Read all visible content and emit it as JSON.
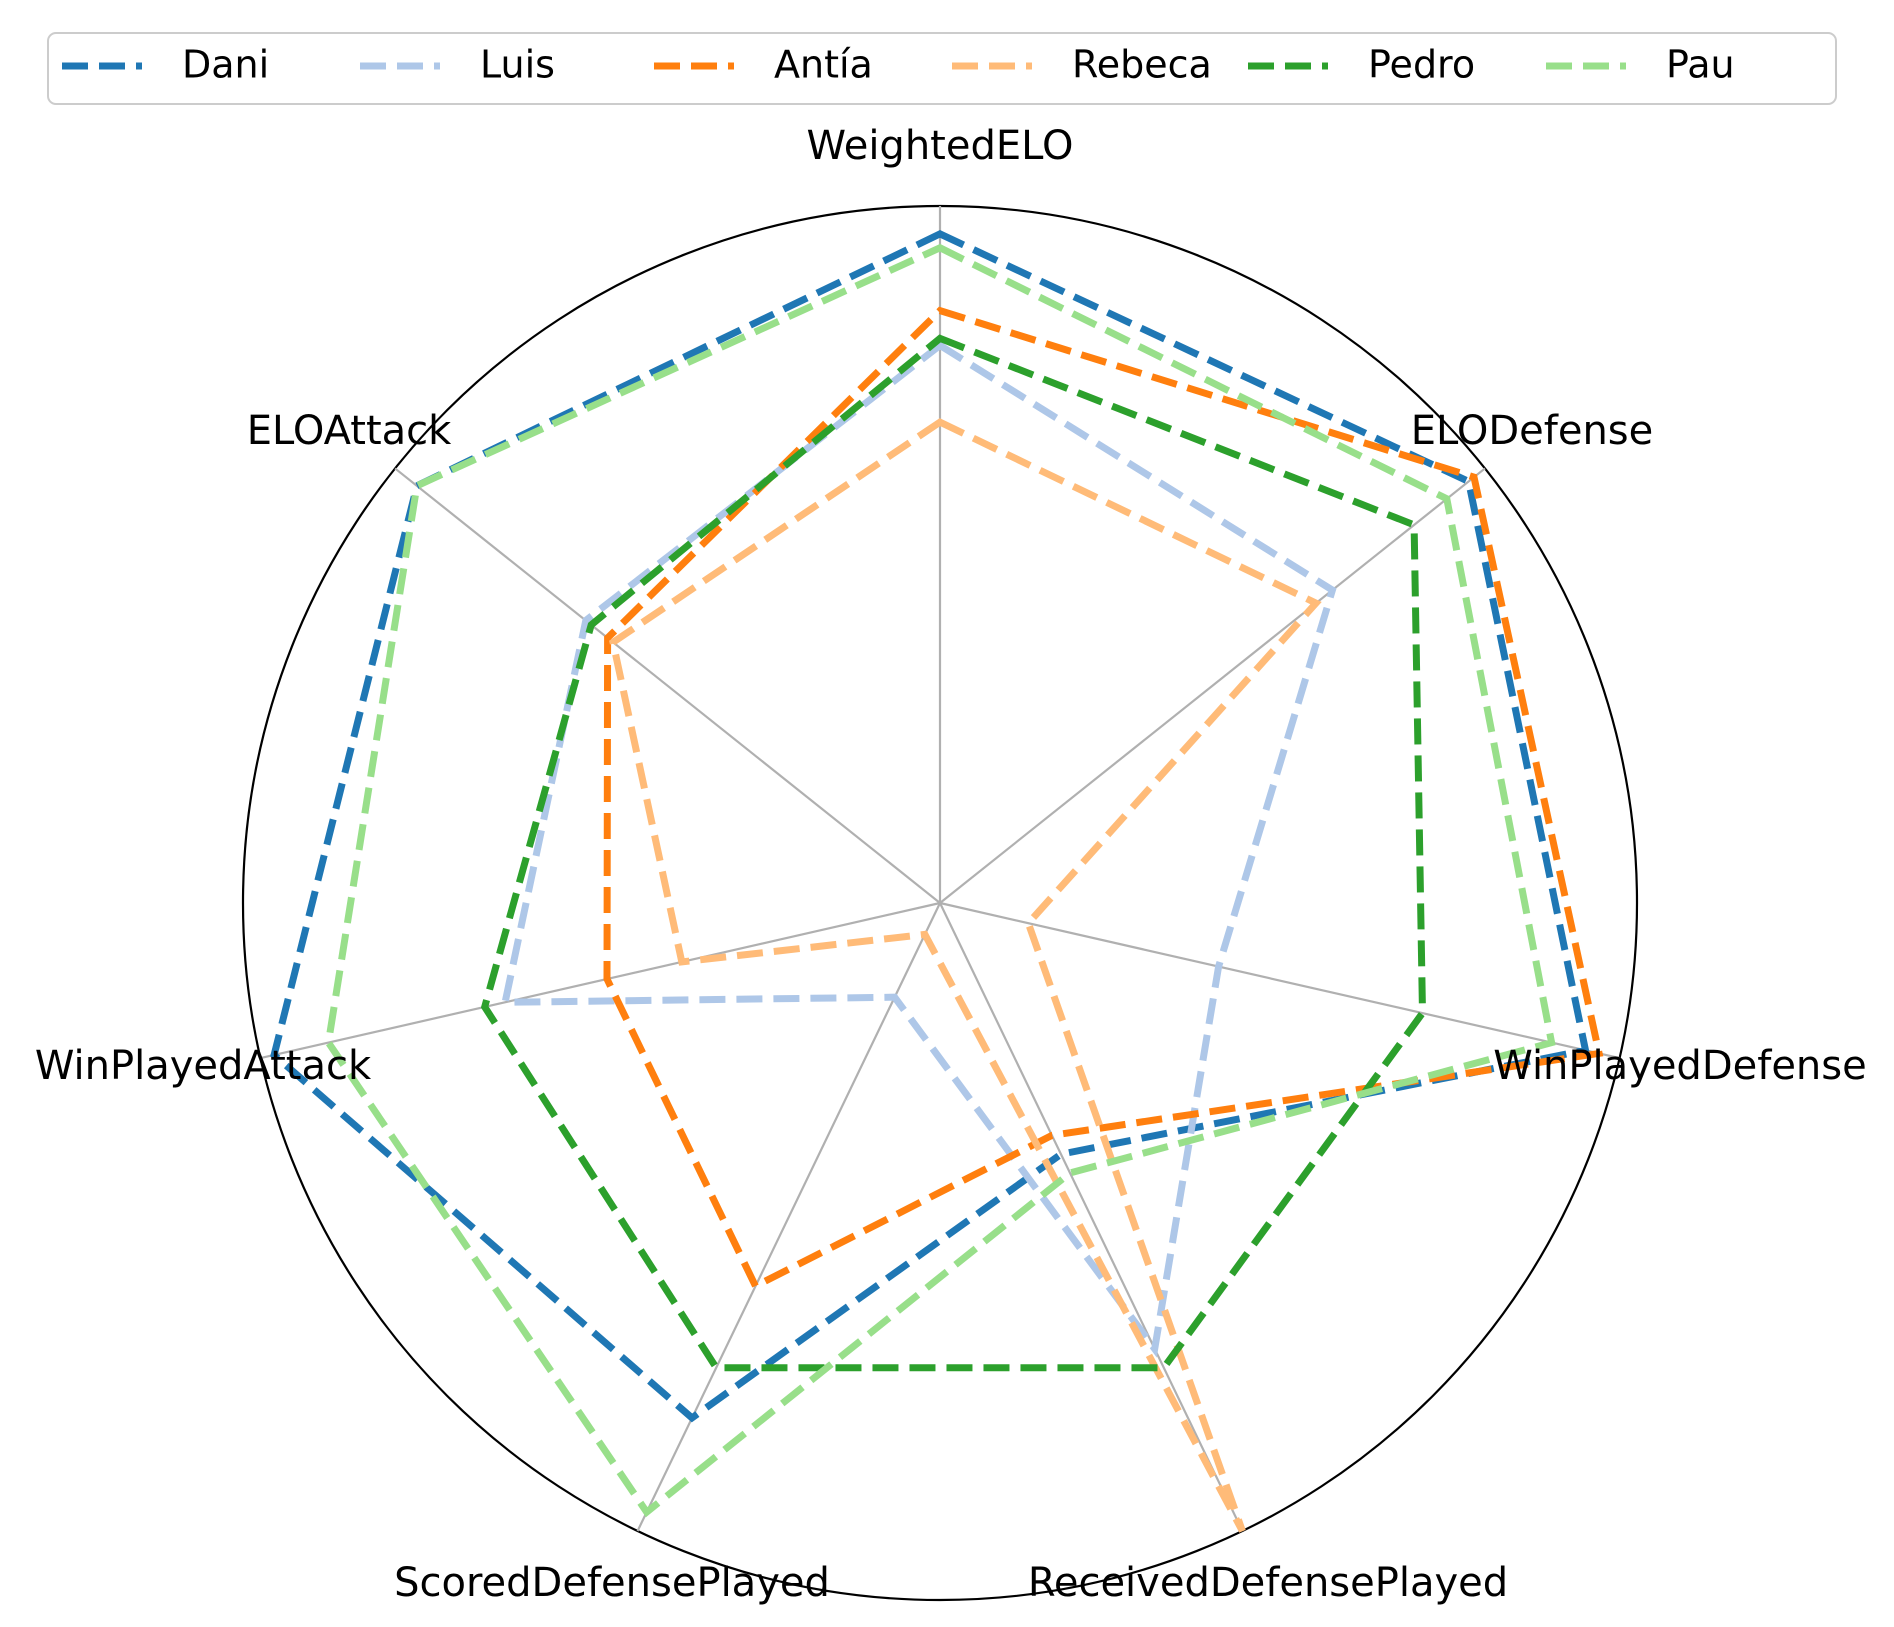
{
  "chart_data": {
    "type": "radar",
    "axes": [
      "WeightedELO",
      "ELODefense",
      "WinPlayedDefense",
      "ReceivedDefensePlayed",
      "ScoredDefensePlayed",
      "WinPlayedAttack",
      "ELOAttack"
    ],
    "rmax": 1.0,
    "grid": true,
    "line_style": "dashed",
    "legend_position": "top",
    "series": [
      {
        "name": "Dani",
        "color": "#1f77b4",
        "values": [
          0.96,
          0.97,
          0.95,
          0.4,
          0.82,
          0.98,
          0.96
        ]
      },
      {
        "name": "Luis",
        "color": "#aec7e8",
        "values": [
          0.8,
          0.72,
          0.41,
          0.71,
          0.15,
          0.64,
          0.65
        ]
      },
      {
        "name": "Antía",
        "color": "#ff7f0e",
        "values": [
          0.85,
          0.98,
          0.97,
          0.37,
          0.61,
          0.49,
          0.61
        ]
      },
      {
        "name": "Rebeca",
        "color": "#ffbb78",
        "values": [
          0.69,
          0.69,
          0.13,
          1.0,
          0.05,
          0.38,
          0.6
        ]
      },
      {
        "name": "Pedro",
        "color": "#2ca02c",
        "values": [
          0.81,
          0.87,
          0.71,
          0.74,
          0.74,
          0.67,
          0.64
        ]
      },
      {
        "name": "Pau",
        "color": "#98df8a",
        "values": [
          0.94,
          0.93,
          0.9,
          0.43,
          0.97,
          0.9,
          0.96
        ]
      }
    ]
  }
}
